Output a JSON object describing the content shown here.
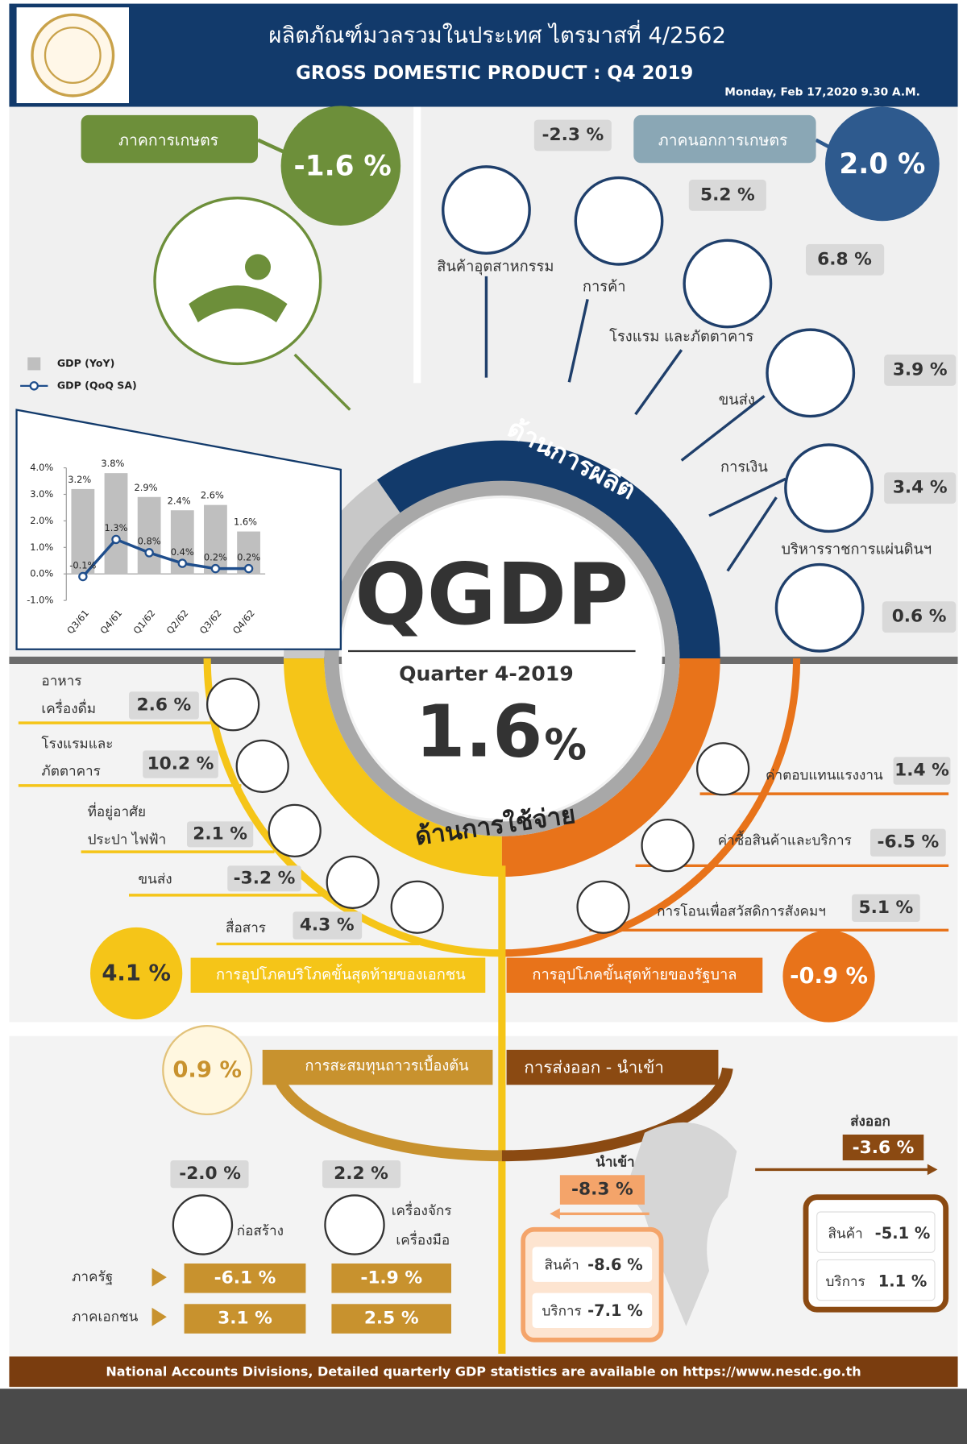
{
  "header": {
    "title_th": "ผลิตภัณฑ์มวลรวมในประเทศ ไตรมาสที่ 4/2562",
    "title_en": "GROSS DOMESTIC PRODUCT : Q4 2019",
    "datetime": "Monday, Feb 17,2020 9.30 A.M."
  },
  "center": {
    "label": "QGDP",
    "quarter": "Quarter 4-2019",
    "value": "1.6",
    "unit": "%"
  },
  "production": {
    "heading": "ด้านการผลิต",
    "agriculture": {
      "label": "ภาคการเกษตร",
      "value": "-1.6 %"
    },
    "non_agriculture": {
      "label": "ภาคนอกการเกษตร",
      "value": "2.0 %"
    },
    "sectors": [
      {
        "label": "สินค้าอุตสาหกรรม",
        "value": "-2.3 %"
      },
      {
        "label": "การค้า",
        "value": "5.2 %"
      },
      {
        "label": "โรงแรม และภัตตาคาร",
        "value": "6.8 %"
      },
      {
        "label": "ขนส่ง",
        "value": "3.9 %"
      },
      {
        "label": "การเงิน",
        "value": "3.4 %"
      },
      {
        "label": "บริหารราชการแผ่นดินฯ",
        "value": "0.6 %"
      }
    ]
  },
  "chart_data": {
    "type": "bar",
    "categories": [
      "Q3/61",
      "Q4/61",
      "Q1/62",
      "Q2/62",
      "Q3/62",
      "Q4/62"
    ],
    "series": [
      {
        "name": "GDP (YoY)",
        "type": "bar",
        "color": "#bfbfbf",
        "values": [
          3.2,
          3.8,
          2.9,
          2.4,
          2.6,
          1.6
        ],
        "value_labels": [
          "3.2%",
          "3.8%",
          "2.9%",
          "2.4%",
          "2.6%",
          "1.6%"
        ]
      },
      {
        "name": "GDP (QoQ SA)",
        "type": "line",
        "color": "#1f4e8c",
        "values": [
          -0.1,
          1.3,
          0.8,
          0.4,
          0.2,
          0.2
        ],
        "value_labels": [
          "-0.1%",
          "1.3%",
          "0.8%",
          "0.4%",
          "0.2%",
          "0.2%"
        ]
      }
    ],
    "ylim": [
      -1,
      4
    ],
    "yticks": [
      {
        "value": -1,
        "label": "-1.0%"
      },
      {
        "value": 0,
        "label": "0.0%"
      },
      {
        "value": 1,
        "label": "1.0%"
      },
      {
        "value": 2,
        "label": "2.0%"
      },
      {
        "value": 3,
        "label": "3.0%"
      },
      {
        "value": 4,
        "label": "4.0%"
      }
    ]
  },
  "expenditure": {
    "heading": "ด้านการใช้จ่าย",
    "private": {
      "label": "การอุปโภคบริโภคขั้นสุดท้ายของเอกชน",
      "value": "4.1 %",
      "items": [
        {
          "label": [
            "อาหาร",
            "เครื่องดื่ม"
          ],
          "value": "2.6 %"
        },
        {
          "label": [
            "โรงแรมและ",
            "ภัตตาคาร"
          ],
          "value": "10.2 %"
        },
        {
          "label": [
            "ที่อยู่อาศัย",
            "ประปา ไฟฟ้า"
          ],
          "value": "2.1 %"
        },
        {
          "label": [
            "ขนส่ง"
          ],
          "value": "-3.2 %"
        },
        {
          "label": [
            "สื่อสาร"
          ],
          "value": "4.3 %"
        }
      ]
    },
    "government": {
      "label": "การอุปโภคขั้นสุดท้ายของรัฐบาล",
      "value": "-0.9 %",
      "items": [
        {
          "label": "ค่าตอบแทนแรงงาน",
          "value": "1.4 %"
        },
        {
          "label": "ค่าซื้อสินค้าและบริการ",
          "value": "-6.5 %"
        },
        {
          "label": "การโอนเพื่อสวัสดิการสังคมฯ",
          "value": "5.1 %"
        }
      ]
    }
  },
  "investment": {
    "label": "การสะสมทุนถาวรเบื้องต้น",
    "value": "0.9 %",
    "public_label": "ภาครัฐ",
    "private_label": "ภาคเอกชน",
    "construction": {
      "label": "ก่อสร้าง",
      "value": "-2.0 %",
      "public": "-6.1 %",
      "private": "3.1 %"
    },
    "machinery": {
      "label": [
        "เครื่องจักร",
        "เครื่องมือ"
      ],
      "value": "2.2 %",
      "public": "-1.9 %",
      "private": "2.5 %"
    }
  },
  "trade": {
    "label": "การส่งออก - นำเข้า",
    "exports": {
      "label": "ส่งออก",
      "value": "-3.6 %",
      "goods": {
        "label": "สินค้า",
        "value": "-5.1 %"
      },
      "services": {
        "label": "บริการ",
        "value": "1.1 %"
      }
    },
    "imports": {
      "label": "นำเข้า",
      "value": "-8.3 %",
      "goods": {
        "label": "สินค้า",
        "value": "-8.6 %"
      },
      "services": {
        "label": "บริการ",
        "value": "-7.1 %"
      }
    }
  },
  "footer": "National Accounts Divisions, Detailed quarterly GDP statistics are available on https://www.nesdc.go.th"
}
